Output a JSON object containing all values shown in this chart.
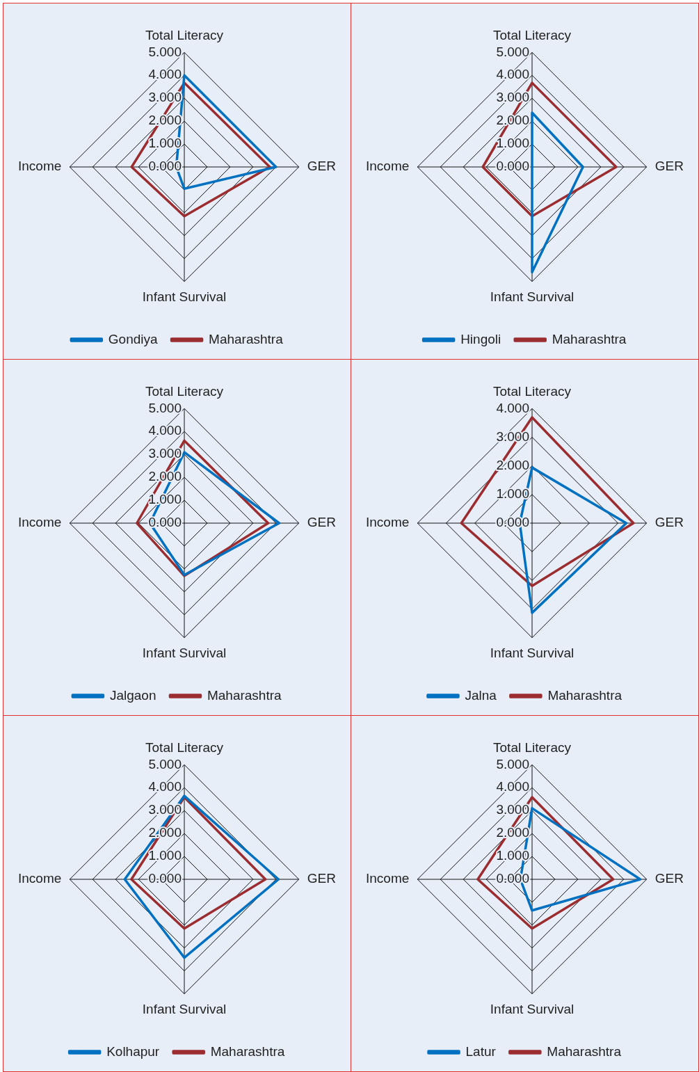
{
  "chart_data": [
    {
      "type": "radar",
      "categories": [
        "Total Literacy",
        "GER",
        "Infant Survival",
        "Income"
      ],
      "series": [
        {
          "name": "Gondiya",
          "color": "#0070c0",
          "values": [
            4.0,
            4.0,
            0.95,
            0.35
          ]
        },
        {
          "name": "Maharashtra",
          "color": "#9b2d30",
          "values": [
            3.67,
            3.73,
            2.15,
            2.3
          ]
        }
      ],
      "ylim": [
        0,
        5
      ],
      "yticks": [
        {
          "value": 0,
          "label": "0.000"
        },
        {
          "value": 1,
          "label": "1.000"
        },
        {
          "value": 2,
          "label": "2.000"
        },
        {
          "value": 3,
          "label": "3.000"
        },
        {
          "value": 4,
          "label": "4.000"
        },
        {
          "value": 5,
          "label": "5.000"
        }
      ],
      "grid": true,
      "legend": "bottom",
      "marker": "none"
    },
    {
      "type": "radar",
      "categories": [
        "Total Literacy",
        "GER",
        "Infant Survival",
        "Income"
      ],
      "series": [
        {
          "name": "Hingoli",
          "color": "#0070c0",
          "values": [
            2.37,
            2.22,
            4.59,
            0
          ]
        },
        {
          "name": "Maharashtra",
          "color": "#9b2d30",
          "values": [
            3.67,
            3.67,
            2.15,
            2.15
          ]
        }
      ],
      "ylim": [
        0,
        5
      ],
      "yticks": [
        {
          "value": 0,
          "label": "0.000"
        },
        {
          "value": 1,
          "label": "1.000"
        },
        {
          "value": 2,
          "label": "2.000"
        },
        {
          "value": 3,
          "label": "3.000"
        },
        {
          "value": 4,
          "label": "4.000"
        },
        {
          "value": 5,
          "label": "5.000"
        }
      ],
      "grid": true,
      "legend": "bottom",
      "marker": "none"
    },
    {
      "type": "radar",
      "categories": [
        "Total Literacy",
        "GER",
        "Infant Survival",
        "Income"
      ],
      "series": [
        {
          "name": "Jalgaon",
          "color": "#0070c0",
          "values": [
            3.09,
            4.14,
            2.26,
            1.5
          ]
        },
        {
          "name": "Maharashtra",
          "color": "#9b2d30",
          "values": [
            3.6,
            3.66,
            2.3,
            2.07
          ]
        }
      ],
      "ylim": [
        0,
        5
      ],
      "yticks": [
        {
          "value": 0,
          "label": "0.000"
        },
        {
          "value": 1,
          "label": "1.000"
        },
        {
          "value": 2,
          "label": "2.000"
        },
        {
          "value": 3,
          "label": "3.000"
        },
        {
          "value": 4,
          "label": "4.000"
        },
        {
          "value": 5,
          "label": "5.000"
        }
      ],
      "grid": true,
      "legend": "bottom",
      "marker": "none"
    },
    {
      "type": "radar",
      "categories": [
        "Total Literacy",
        "GER",
        "Infant Survival",
        "Income"
      ],
      "series": [
        {
          "name": "Jalna",
          "color": "#0070c0",
          "values": [
            1.94,
            3.29,
            3.13,
            0.43
          ]
        },
        {
          "name": "Maharashtra",
          "color": "#9b2d30",
          "values": [
            3.69,
            3.54,
            2.19,
            2.47
          ]
        }
      ],
      "ylim": [
        0,
        4
      ],
      "yticks": [
        {
          "value": 0,
          "label": "0.000"
        },
        {
          "value": 1,
          "label": "1.000"
        },
        {
          "value": 2,
          "label": "2.000"
        },
        {
          "value": 3,
          "label": "3.000"
        },
        {
          "value": 4,
          "label": "4.000"
        }
      ],
      "grid": true,
      "legend": "bottom",
      "marker": "none"
    },
    {
      "type": "radar",
      "categories": [
        "Total Literacy",
        "GER",
        "Infant Survival",
        "Income"
      ],
      "series": [
        {
          "name": "Kolhapur",
          "color": "#0070c0",
          "values": [
            3.64,
            4.11,
            3.42,
            2.6
          ]
        },
        {
          "name": "Maharashtra",
          "color": "#9b2d30",
          "values": [
            3.58,
            3.54,
            2.15,
            2.31
          ]
        }
      ],
      "ylim": [
        0,
        5
      ],
      "yticks": [
        {
          "value": 0,
          "label": "0.000"
        },
        {
          "value": 1,
          "label": "1.000"
        },
        {
          "value": 2,
          "label": "2.000"
        },
        {
          "value": 3,
          "label": "3.000"
        },
        {
          "value": 4,
          "label": "4.000"
        },
        {
          "value": 5,
          "label": "5.000"
        }
      ],
      "grid": true,
      "legend": "bottom",
      "marker": "none"
    },
    {
      "type": "radar",
      "categories": [
        "Total Literacy",
        "GER",
        "Infant Survival",
        "Income"
      ],
      "series": [
        {
          "name": "Latur",
          "color": "#0070c0",
          "values": [
            3.1,
            4.72,
            1.36,
            0.51
          ]
        },
        {
          "name": "Maharashtra",
          "color": "#9b2d30",
          "values": [
            3.58,
            3.54,
            2.15,
            2.37
          ]
        }
      ],
      "ylim": [
        0,
        5
      ],
      "yticks": [
        {
          "value": 0,
          "label": "0.000"
        },
        {
          "value": 1,
          "label": "1.000"
        },
        {
          "value": 2,
          "label": "2.000"
        },
        {
          "value": 3,
          "label": "3.000"
        },
        {
          "value": 4,
          "label": "4.000"
        },
        {
          "value": 5,
          "label": "5.000"
        }
      ],
      "grid": true,
      "legend": "bottom",
      "marker": "none"
    }
  ]
}
